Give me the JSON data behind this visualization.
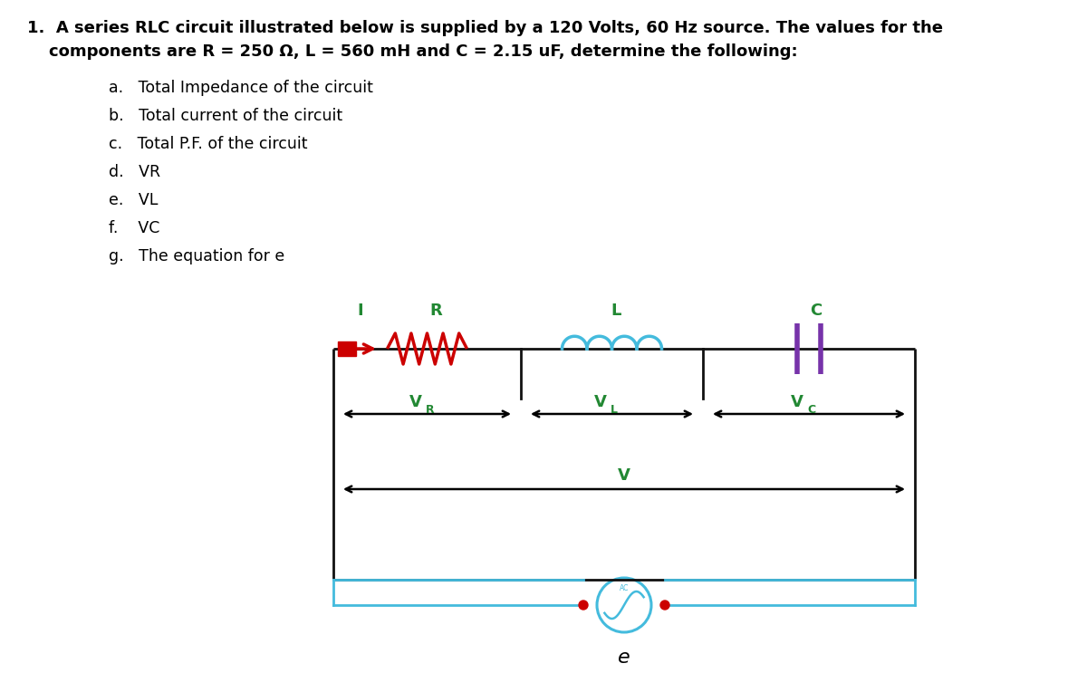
{
  "title_line1": "1.  A series RLC circuit illustrated below is supplied by a 120 Volts, 60 Hz source. The values for the",
  "title_line2": "    components are R = 250 Ω, L = 560 mH and C = 2.15 uF, determine the following:",
  "items": [
    "a.   Total Impedance of the circuit",
    "b.   Total current of the circuit",
    "c.   Total P.F. of the circuit",
    "d.   VR",
    "e.   VL",
    "f.    VC",
    "g.   The equation for e"
  ],
  "bg_color": "#ffffff",
  "text_color": "#000000",
  "resistor_color": "#cc0000",
  "inductor_color": "#44bbdd",
  "capacitor_color": "#7733aa",
  "label_green": "#228833",
  "wire_color": "#111111",
  "source_color": "#44bbdd",
  "dot_color": "#cc0000",
  "current_arrow_color": "#cc0000",
  "e_label_color": "#000000",
  "font_size_title": 13,
  "font_size_items": 12.5
}
